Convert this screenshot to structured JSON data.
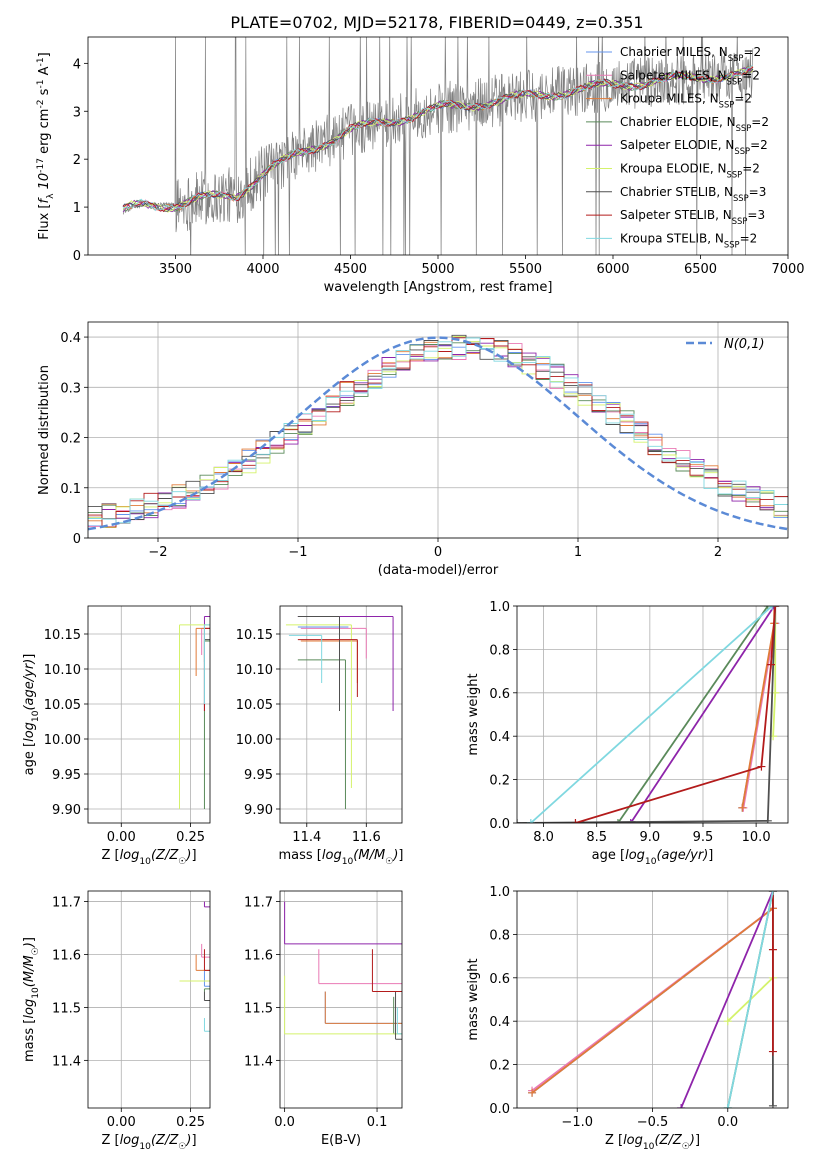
{
  "title": "PLATE=0702, MJD=52178, FIBERID=0449, z=0.351",
  "colors": {
    "observed": "#808080",
    "normal": "#5b8ad6",
    "models": [
      "#6495ed",
      "#e97ab5",
      "#e07b39",
      "#5a8a5a",
      "#8e24aa",
      "#d4f26b",
      "#505050",
      "#b31b1b",
      "#80d8e0"
    ]
  },
  "legend_entries": [
    "Chabrier MILES, N$_{SSP}$=2",
    "Salpeter MILES, N$_{SSP}$=2",
    "Kroupa MILES, N$_{SSP}$=2",
    "Chabrier ELODIE, N$_{SSP}$=2",
    "Salpeter ELODIE, N$_{SSP}$=2",
    "Kroupa ELODIE, N$_{SSP}$=2",
    "Chabrier STELIB, N$_{SSP}$=3",
    "Salpeter STELIB, N$_{SSP}$=3",
    "Kroupa STELIB, N$_{SSP}$=2"
  ],
  "chart_data": [
    {
      "id": "spectrum",
      "type": "line",
      "xlabel": "wavelength [Angstrom, rest frame]",
      "ylabel": "Flux [$f_\\lambda 10^{-17}$ erg cm$^{-2}$ s$^{-1}$ A$^{-1}$]",
      "xlim": [
        3000,
        7000
      ],
      "ylim": [
        0,
        4.55
      ],
      "xticks": [
        3500,
        4000,
        4500,
        5000,
        5500,
        6000,
        6500,
        7000
      ],
      "yticks": [
        0,
        1,
        2,
        3,
        4
      ],
      "grid": false,
      "legend": "upper right",
      "x_range": [
        3200,
        6800
      ],
      "continuum": [
        [
          3200,
          0.9
        ],
        [
          3300,
          1.05
        ],
        [
          3500,
          1.05
        ],
        [
          3700,
          1.2
        ],
        [
          3850,
          1.25
        ],
        [
          4000,
          1.7
        ],
        [
          4200,
          2.1
        ],
        [
          4500,
          2.6
        ],
        [
          5000,
          3.05
        ],
        [
          5500,
          3.3
        ],
        [
          6000,
          3.55
        ],
        [
          6500,
          3.72
        ],
        [
          6800,
          3.8
        ]
      ]
    },
    {
      "id": "residuals",
      "type": "bar",
      "xlabel": "(data-model)/error",
      "ylabel": "Normed distribution",
      "xlim": [
        -2.5,
        2.5
      ],
      "ylim": [
        0,
        0.43
      ],
      "xticks": [
        -2,
        -1,
        0,
        1,
        2
      ],
      "yticks": [
        0.0,
        0.1,
        0.2,
        0.3,
        0.4
      ],
      "grid": true,
      "legend": "upper right",
      "normal_label": "$\\mathcal{N}(0,1)$",
      "bin_start": -2.5,
      "bin_width": 0.1,
      "shape_mean": 0.2,
      "shape_sigma": 1.1,
      "shape_peak": 0.36
    },
    {
      "id": "age-vs-Z",
      "type": "scatter",
      "xlabel": "Z [$\\log_{10}(Z/Z_\\odot)$]",
      "ylabel": "age  [$\\log_{10}(age/yr)$]",
      "xlim": [
        -0.12,
        0.32
      ],
      "ylim": [
        9.88,
        10.19
      ],
      "xticks": [
        0.0,
        0.25
      ],
      "xticklabels": [
        "0.00",
        "0.25"
      ],
      "yticks": [
        9.9,
        9.95,
        10.0,
        10.05,
        10.1,
        10.15
      ],
      "yticklabels": [
        "9.90",
        "9.95",
        "10.00",
        "10.05",
        "10.10",
        "10.15"
      ],
      "points": [
        [
          0.3,
          10.175,
          9.9,
          10.174
        ],
        [
          0.29,
          10.158,
          9.9,
          10.12
        ],
        [
          0.27,
          10.158,
          9.9,
          10.09
        ],
        [
          0.3,
          10.14,
          9.9,
          9.9
        ],
        [
          0.3,
          10.175,
          9.9,
          10.04
        ],
        [
          0.21,
          10.163,
          9.9,
          9.9
        ],
        [
          0.3,
          10.142,
          9.9,
          10.11
        ],
        [
          0.3,
          10.158,
          9.9,
          10.04
        ],
        [
          0.3,
          10.163,
          9.9,
          10.05
        ]
      ]
    },
    {
      "id": "age-vs-mass",
      "type": "scatter",
      "xlabel": "mass [$\\log_{10}(M/M_\\odot)$]",
      "ylabel": "",
      "xlim": [
        11.31,
        11.72
      ],
      "ylim": [
        9.88,
        10.19
      ],
      "xticks": [
        11.4,
        11.6
      ],
      "yticks": [
        9.9,
        9.95,
        10.0,
        10.05,
        10.1,
        10.15
      ],
      "yticklabels": [
        "9.90",
        "9.95",
        "10.00",
        "10.05",
        "10.10",
        "10.15"
      ],
      "points": [
        [
          11.54,
          10.16,
          11.37,
          10.16
        ],
        [
          11.6,
          10.158,
          11.38,
          10.115
        ],
        [
          11.57,
          10.14,
          11.38,
          10.08
        ],
        [
          11.53,
          10.113,
          11.37,
          9.9
        ],
        [
          11.69,
          10.175,
          11.37,
          10.04
        ],
        [
          11.55,
          10.163,
          11.33,
          9.93
        ],
        [
          11.51,
          10.175,
          11.37,
          10.04
        ],
        [
          11.57,
          10.142,
          11.37,
          10.06
        ],
        [
          11.45,
          10.148,
          11.34,
          10.08
        ]
      ]
    },
    {
      "id": "cumulative-age",
      "type": "line",
      "xlabel": "age  [$\\log_{10}(age/yr)$]",
      "ylabel": "mass weight",
      "xlim": [
        7.75,
        10.3
      ],
      "ylim": [
        0,
        1
      ],
      "xticks": [
        8.0,
        8.5,
        9.0,
        9.5,
        10.0
      ],
      "xticklabels": [
        "8.0",
        "8.5",
        "9.0",
        "9.5",
        "10.0"
      ],
      "yticks": [
        0.0,
        0.2,
        0.4,
        0.6,
        0.8,
        1.0
      ],
      "yticklabels": [
        "0.0",
        "0.2",
        "0.4",
        "0.6",
        "0.8",
        "1.0"
      ],
      "series": [
        {
          "values": [
            [
              9.87,
              0.07
            ],
            [
              10.18,
              0.92
            ],
            [
              10.18,
              1.0
            ]
          ]
        },
        {
          "values": [
            [
              9.88,
              0.07
            ],
            [
              10.18,
              0.92
            ],
            [
              10.18,
              1.0
            ]
          ]
        },
        {
          "values": [
            [
              9.87,
              0.07
            ],
            [
              10.17,
              0.92
            ],
            [
              10.17,
              1.0
            ]
          ]
        },
        {
          "values": [
            [
              8.7,
              0.0
            ],
            [
              10.11,
              1.0
            ]
          ]
        },
        {
          "values": [
            [
              8.82,
              0.0
            ],
            [
              10.17,
              1.0
            ]
          ]
        },
        {
          "values": [
            [
              10.16,
              0.4
            ],
            [
              10.18,
              0.6
            ],
            [
              10.18,
              1.0
            ]
          ]
        },
        {
          "values": [
            [
              7.75,
              0.0
            ],
            [
              10.11,
              0.01
            ],
            [
              10.18,
              1.0
            ]
          ]
        },
        {
          "values": [
            [
              8.3,
              0.0
            ],
            [
              10.05,
              0.26
            ],
            [
              10.14,
              0.73
            ],
            [
              10.18,
              1.0
            ]
          ]
        },
        {
          "values": [
            [
              7.88,
              0.0
            ],
            [
              10.15,
              1.0
            ]
          ]
        }
      ]
    },
    {
      "id": "mass-vs-Z",
      "type": "scatter",
      "xlabel": "Z [$\\log_{10}(Z/Z_\\odot)$]",
      "ylabel": "mass [$\\log_{10}(M/M_\\odot)$]",
      "xlim": [
        -0.12,
        0.32
      ],
      "ylim": [
        11.31,
        11.72
      ],
      "xticks": [
        0.0,
        0.25
      ],
      "xticklabels": [
        "0.00",
        "0.25"
      ],
      "yticks": [
        11.4,
        11.5,
        11.6,
        11.7
      ],
      "points": [
        [
          0.3,
          11.54,
          11.34,
          11.57
        ],
        [
          0.29,
          11.595,
          11.36,
          11.62
        ],
        [
          0.27,
          11.57,
          11.36,
          11.6
        ],
        [
          0.3,
          11.535,
          11.33,
          11.53
        ],
        [
          0.3,
          11.69,
          11.37,
          11.7
        ],
        [
          0.21,
          11.55,
          11.32,
          11.55
        ],
        [
          0.3,
          11.513,
          11.35,
          11.53
        ],
        [
          0.3,
          11.57,
          11.36,
          11.61
        ],
        [
          0.3,
          11.455,
          11.33,
          11.48
        ]
      ]
    },
    {
      "id": "mass-vs-EBV",
      "type": "scatter",
      "xlabel": "E(B-V)",
      "ylabel": "",
      "xlim": [
        -0.005,
        0.127
      ],
      "ylim": [
        11.31,
        11.72
      ],
      "xticks": [
        0.0,
        0.1
      ],
      "xticklabels": [
        "0.0",
        "0.1"
      ],
      "yticks": [
        11.4,
        11.5,
        11.6,
        11.7
      ],
      "points": [
        [
          0.044,
          11.47,
          11.36,
          11.53
        ],
        [
          0.037,
          11.545,
          11.48,
          11.61
        ],
        [
          0.044,
          11.47,
          11.36,
          11.53
        ],
        [
          0.118,
          11.45,
          11.37,
          11.52
        ],
        [
          0.0,
          11.62,
          11.56,
          11.7
        ],
        [
          0.0,
          11.45,
          11.32,
          11.56
        ],
        [
          0.12,
          11.44,
          11.35,
          11.53
        ],
        [
          0.095,
          11.53,
          11.45,
          11.61
        ],
        [
          0.122,
          11.45,
          11.37,
          11.5
        ]
      ]
    },
    {
      "id": "cumulative-Z",
      "type": "line",
      "xlabel": "Z [$\\log_{10}(Z/Z_\\odot)$]",
      "ylabel": "mass weight",
      "xlim": [
        -1.4,
        0.4
      ],
      "ylim": [
        0,
        1
      ],
      "xticks": [
        -1.0,
        -0.5,
        0.0
      ],
      "xticklabels": [
        "−1.0",
        "−0.5",
        "0.0"
      ],
      "yticks": [
        0.0,
        0.2,
        0.4,
        0.6,
        0.8,
        1.0
      ],
      "yticklabels": [
        "0.0",
        "0.2",
        "0.4",
        "0.6",
        "0.8",
        "1.0"
      ],
      "series": [
        {
          "values": [
            [
              -1.3,
              0.07
            ],
            [
              0.3,
              0.92
            ],
            [
              0.3,
              1.0
            ]
          ]
        },
        {
          "values": [
            [
              -1.3,
              0.08
            ],
            [
              0.3,
              0.92
            ],
            [
              0.3,
              1.0
            ]
          ]
        },
        {
          "values": [
            [
              -1.3,
              0.07
            ],
            [
              0.3,
              0.92
            ],
            [
              0.3,
              1.0
            ]
          ]
        },
        {
          "values": [
            [
              0.0,
              0.0
            ],
            [
              0.3,
              1.0
            ]
          ]
        },
        {
          "values": [
            [
              -0.31,
              0.0
            ],
            [
              0.3,
              1.0
            ]
          ]
        },
        {
          "values": [
            [
              0.0,
              0.4
            ],
            [
              0.3,
              0.6
            ],
            [
              0.3,
              1.0
            ]
          ]
        },
        {
          "values": [
            [
              0.3,
              0.01
            ],
            [
              0.3,
              1.0
            ]
          ]
        },
        {
          "values": [
            [
              0.3,
              0.26
            ],
            [
              0.3,
              0.73
            ],
            [
              0.3,
              1.0
            ]
          ]
        },
        {
          "values": [
            [
              0.0,
              0.0
            ],
            [
              0.3,
              1.0
            ]
          ]
        }
      ]
    }
  ]
}
